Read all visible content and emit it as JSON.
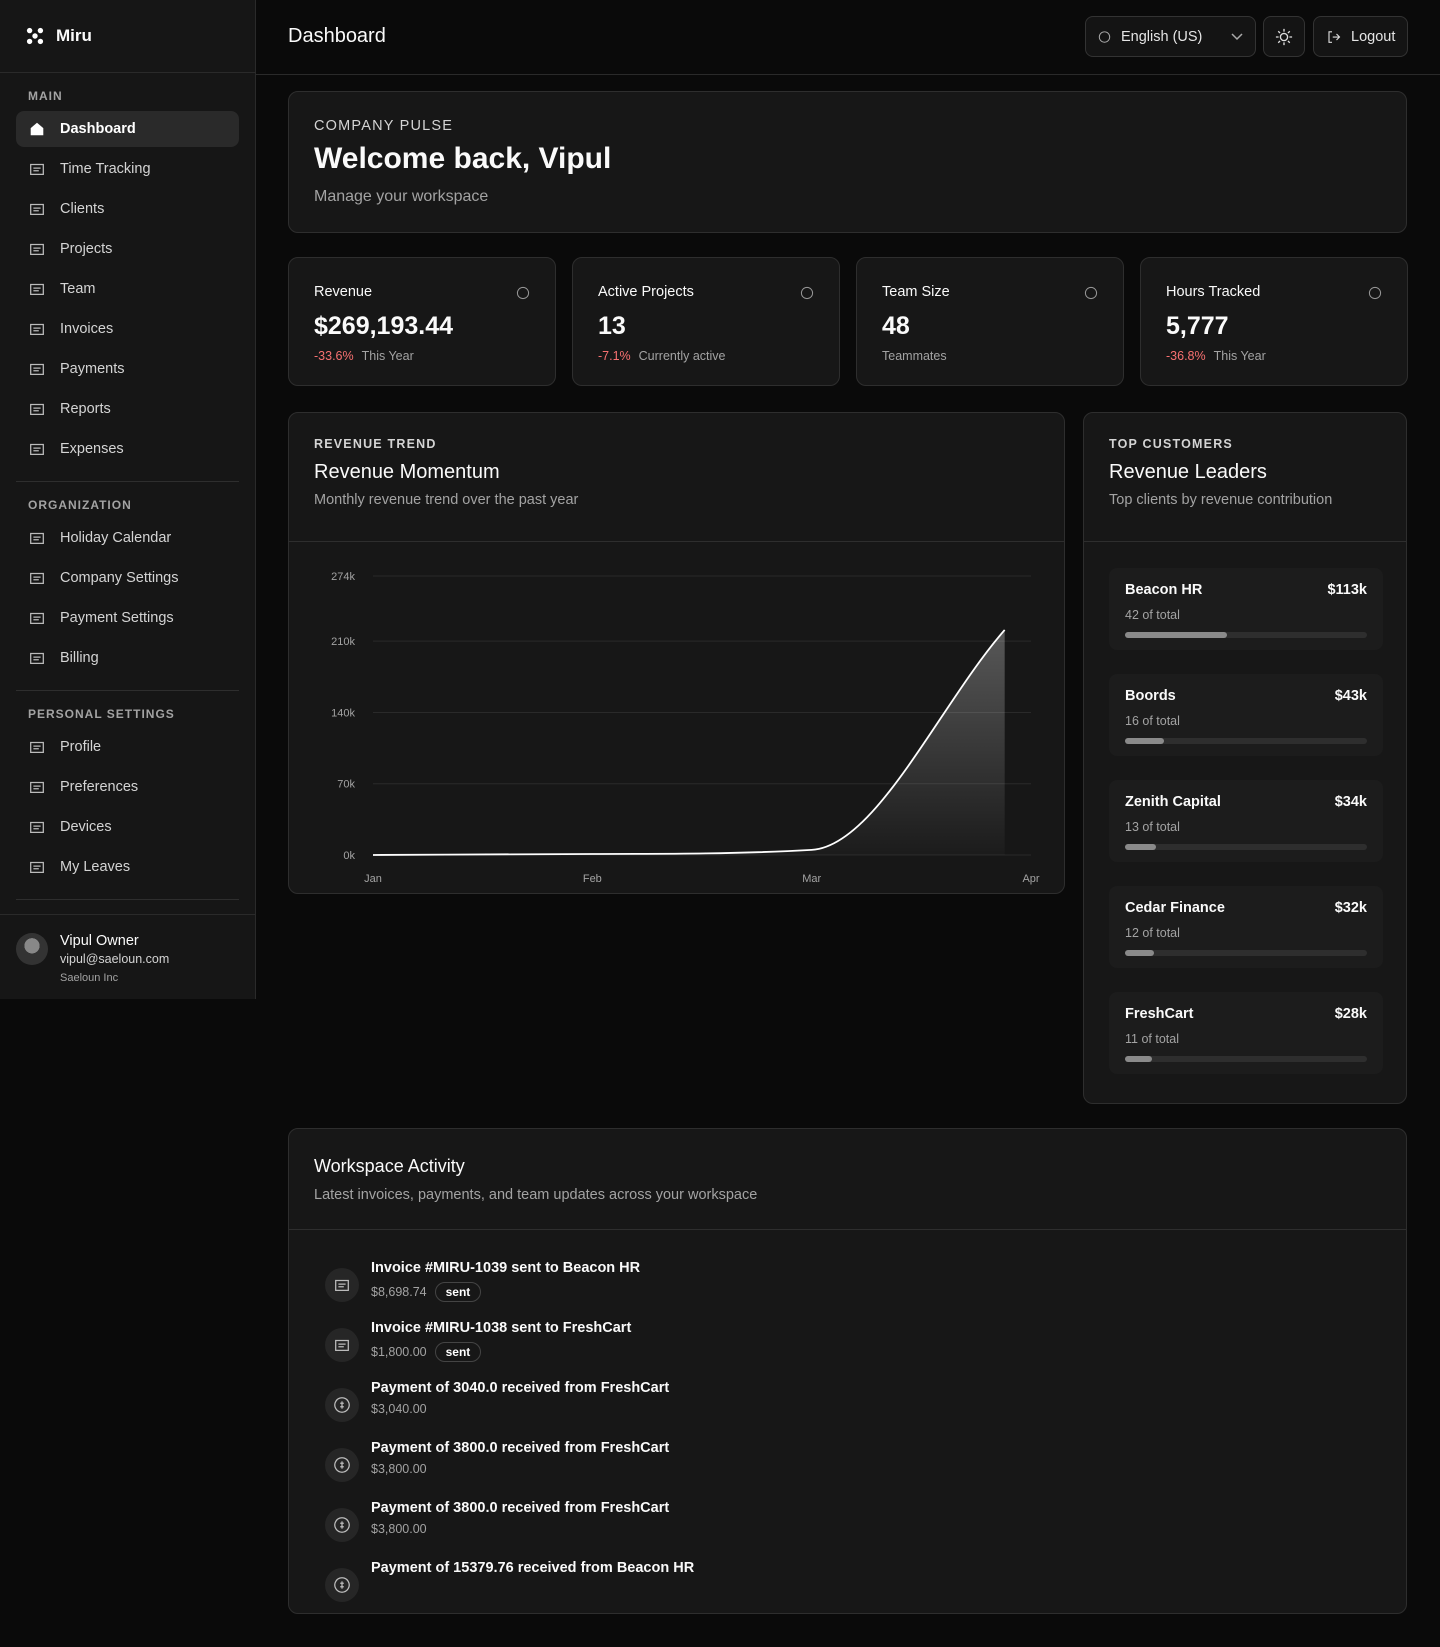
{
  "sidebar": {
    "brand": "Miru",
    "sections": [
      {
        "title": "MAIN",
        "items": [
          "Dashboard",
          "Time Tracking",
          "Clients",
          "Projects",
          "Team",
          "Invoices",
          "Payments",
          "Reports",
          "Expenses"
        ]
      },
      {
        "title": "ORGANIZATION",
        "items": [
          "Holiday Calendar",
          "Company Settings",
          "Payment Settings",
          "Billing"
        ]
      },
      {
        "title": "PERSONAL SETTINGS",
        "items": [
          "Profile",
          "Preferences",
          "Devices",
          "My Leaves"
        ]
      }
    ],
    "user": {
      "name": "Vipul Owner",
      "email": "vipul@saeloun.com",
      "company": "Saeloun Inc"
    }
  },
  "header": {
    "title": "Dashboard",
    "language": "English (US)",
    "logout": "Logout"
  },
  "pulse": {
    "eyebrow": "COMPANY PULSE",
    "title": "Welcome back, Vipul",
    "subtitle": "Manage your workspace"
  },
  "stats": [
    {
      "label": "Revenue",
      "value": "$269,193.44",
      "change": "-33.6%",
      "note": "This Year"
    },
    {
      "label": "Active Projects",
      "value": "13",
      "change": "-7.1%",
      "note": "Currently active"
    },
    {
      "label": "Team Size",
      "value": "48",
      "note": "Teammates"
    },
    {
      "label": "Hours Tracked",
      "value": "5,777",
      "change": "-36.8%",
      "note": "This Year"
    }
  ],
  "chart_data": {
    "type": "line",
    "eyebrow": "REVENUE TREND",
    "title": "Revenue Momentum",
    "subtitle": "Monthly revenue trend over the past year",
    "x": [
      0,
      1,
      2,
      2.88
    ],
    "values": [
      0,
      1000,
      5000,
      221000
    ],
    "color": "#ffffff",
    "area": true,
    "grid": true,
    "xlim": [
      0,
      3
    ],
    "xticks": [
      {
        "value": 0,
        "label": "Jan"
      },
      {
        "value": 1,
        "label": "Feb"
      },
      {
        "value": 2,
        "label": "Mar"
      },
      {
        "value": 3,
        "label": "Apr"
      }
    ],
    "ylim": [
      0,
      274000
    ],
    "yticks": [
      {
        "value": 0,
        "label": "0k"
      },
      {
        "value": 70000,
        "label": "70k"
      },
      {
        "value": 140000,
        "label": "140k"
      },
      {
        "value": 210000,
        "label": "210k"
      },
      {
        "value": 274000,
        "label": "274k"
      }
    ]
  },
  "customers": {
    "eyebrow": "TOP CUSTOMERS",
    "title": "Revenue Leaders",
    "subtitle": "Top clients by revenue contribution",
    "items": [
      {
        "name": "Beacon HR",
        "amount": "$113k",
        "share": 42,
        "share_label": "42 of total"
      },
      {
        "name": "Boords",
        "amount": "$43k",
        "share": 16,
        "share_label": "16 of total"
      },
      {
        "name": "Zenith Capital",
        "amount": "$34k",
        "share": 13,
        "share_label": "13 of total"
      },
      {
        "name": "Cedar Finance",
        "amount": "$32k",
        "share": 12,
        "share_label": "12 of total"
      },
      {
        "name": "FreshCart",
        "amount": "$28k",
        "share": 11,
        "share_label": "11 of total"
      }
    ]
  },
  "activity": {
    "title": "Workspace Activity",
    "subtitle": "Latest invoices, payments, and team updates across your workspace",
    "items": [
      {
        "kind": "invoice",
        "title": "Invoice #MIRU-1039 sent to Beacon HR",
        "amount": "$8,698.74",
        "status": "sent"
      },
      {
        "kind": "invoice",
        "title": "Invoice #MIRU-1038 sent to FreshCart",
        "amount": "$1,800.00",
        "status": "sent"
      },
      {
        "kind": "payment",
        "title": "Payment of 3040.0 received from FreshCart",
        "amount": "$3,040.00"
      },
      {
        "kind": "payment",
        "title": "Payment of 3800.0 received from FreshCart",
        "amount": "$3,800.00"
      },
      {
        "kind": "payment",
        "title": "Payment of 3800.0 received from FreshCart",
        "amount": "$3,800.00"
      },
      {
        "kind": "payment",
        "title": "Payment of 15379.76 received from Beacon HR"
      }
    ]
  }
}
